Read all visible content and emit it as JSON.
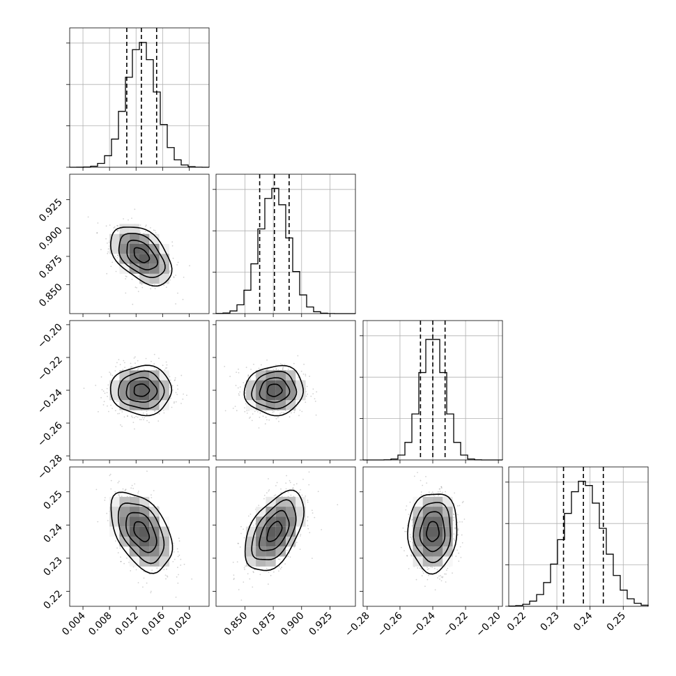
{
  "chart_data": {
    "type": "corner",
    "parameters": [
      {
        "index": 0,
        "mean": 0.0128,
        "std": 0.0023,
        "range": [
          0.002,
          0.023
        ],
        "ticks": [
          0.004,
          0.008,
          0.012,
          0.016,
          0.02
        ],
        "tick_labels": [
          "0.004",
          "0.008",
          "0.012",
          "0.016",
          "0.020"
        ],
        "quantiles_16_50_84": [
          0.0106,
          0.0128,
          0.0151
        ]
      },
      {
        "index": 1,
        "mean": 0.876,
        "std": 0.013,
        "range": [
          0.8245,
          0.9475
        ],
        "ticks": [
          0.85,
          0.875,
          0.9,
          0.925
        ],
        "tick_labels": [
          "0.850",
          "0.875",
          "0.900",
          "0.925"
        ],
        "quantiles_16_50_84": [
          0.863,
          0.876,
          0.889
        ]
      },
      {
        "index": 2,
        "mean": -0.24,
        "std": 0.0075,
        "range": [
          -0.2825,
          -0.1975
        ],
        "ticks": [
          -0.28,
          -0.26,
          -0.24,
          -0.22,
          -0.2
        ],
        "tick_labels": [
          "−0.28",
          "−0.26",
          "−0.24",
          "−0.22",
          "−0.20"
        ],
        "quantiles_16_50_84": [
          -0.2475,
          -0.24,
          -0.2325
        ]
      },
      {
        "index": 3,
        "mean": 0.238,
        "std": 0.006,
        "range": [
          0.2155,
          0.2575
        ],
        "ticks": [
          0.22,
          0.23,
          0.24,
          0.25
        ],
        "tick_labels": [
          "0.22",
          "0.23",
          "0.24",
          "0.25"
        ],
        "quantiles_16_50_84": [
          0.232,
          0.238,
          0.244
        ]
      }
    ],
    "correlations": [
      {
        "pair": [
          0,
          1
        ],
        "rho": -0.45
      },
      {
        "pair": [
          0,
          2
        ],
        "rho": 0.0
      },
      {
        "pair": [
          1,
          2
        ],
        "rho": 0.05
      },
      {
        "pair": [
          0,
          3
        ],
        "rho": -0.45
      },
      {
        "pair": [
          1,
          3
        ],
        "rho": 0.5
      },
      {
        "pair": [
          2,
          3
        ],
        "rho": 0.05
      }
    ],
    "histogram_bins": 20,
    "contour_levels_sigma": [
      0.5,
      1.0,
      1.5,
      2.0
    ],
    "grid": true
  }
}
